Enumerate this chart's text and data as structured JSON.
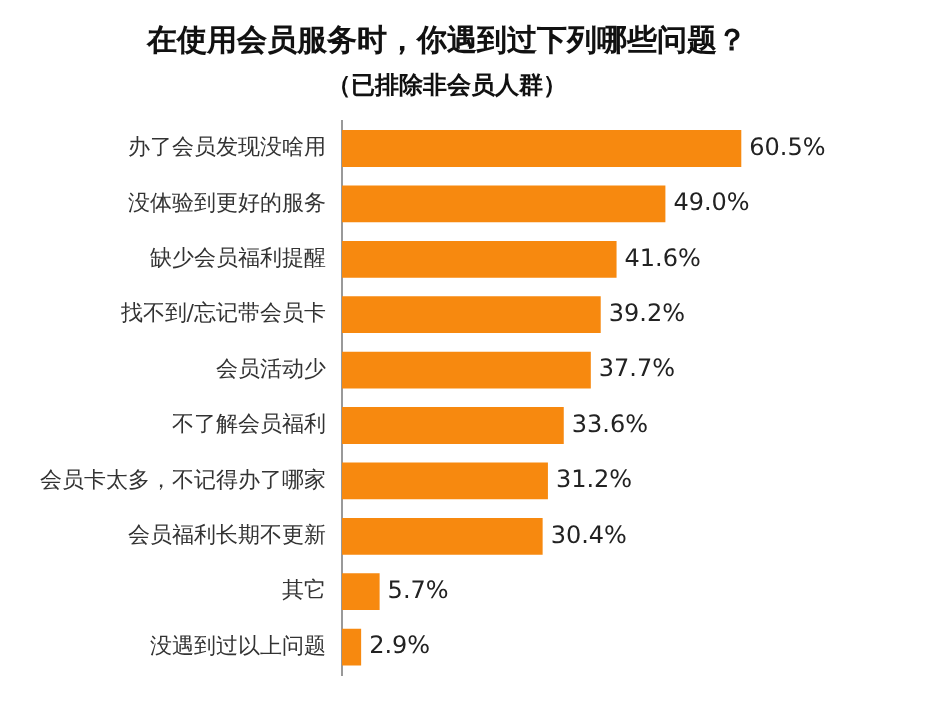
{
  "chart_data": {
    "type": "bar",
    "orientation": "horizontal",
    "title": "在使用会员服务时，你遇到过下列哪些问题？",
    "subtitle": "（已排除非会员人群）",
    "categories": [
      "办了会员发现没啥用",
      "没体验到更好的服务",
      "缺少会员福利提醒",
      "找不到/忘记带会员卡",
      "会员活动少",
      "不了解会员福利",
      "会员卡太多，不记得办了哪家",
      "会员福利长期不更新",
      "其它",
      "没遇到过以上问题"
    ],
    "values": [
      60.5,
      49.0,
      41.6,
      39.2,
      37.7,
      33.6,
      31.2,
      30.4,
      5.7,
      2.9
    ],
    "value_labels": [
      "60.5%",
      "49.0%",
      "41.6%",
      "39.2%",
      "37.7%",
      "33.6%",
      "31.2%",
      "30.4%",
      "5.7%",
      "2.9%"
    ],
    "color": "#f7890f",
    "legend": false
  }
}
